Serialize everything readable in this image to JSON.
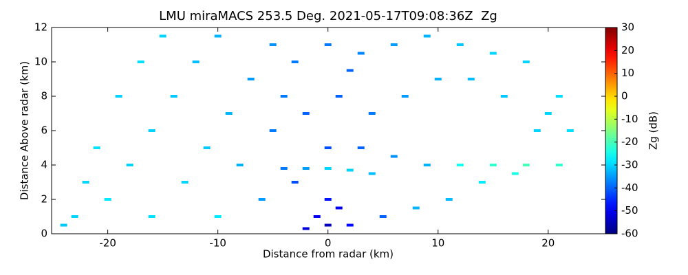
{
  "chart_data": {
    "type": "scatter",
    "title": "LMU miraMACS 253.5 Deg. 2021-05-17T09:08:36Z  Zg",
    "xlabel": "Distance from radar (km)",
    "ylabel": "Distance Above radar  (km)",
    "xlim": [
      -25.1,
      25.2
    ],
    "xticks": [
      -20,
      -10,
      0,
      10,
      20
    ],
    "ylim": [
      0,
      12
    ],
    "yticks": [
      0,
      2,
      4,
      6,
      8,
      10,
      12
    ],
    "colormap": "jet",
    "colorbar": {
      "label": "Zg (dB)",
      "lim": [
        -60,
        30
      ],
      "ticks": [
        -60,
        -50,
        -40,
        -30,
        -20,
        -10,
        0,
        10,
        20,
        30
      ]
    },
    "x": [
      -23,
      -22,
      -21,
      -19,
      -17,
      -15,
      -20,
      -18,
      -16,
      -14,
      -12,
      -10,
      -13,
      -11,
      -9,
      -7,
      -5,
      -3,
      0,
      3,
      6,
      9,
      12,
      15,
      18,
      21,
      22,
      19,
      16,
      13,
      10,
      7,
      4,
      1,
      -2,
      -5,
      -8,
      -6,
      -3,
      0,
      3,
      6,
      9,
      12,
      15,
      18,
      21,
      17,
      14,
      11,
      8,
      5,
      2,
      0,
      -1,
      0,
      -2,
      1,
      -4,
      -2,
      0,
      2,
      4,
      -10,
      -16,
      -24,
      20,
      -4,
      2
    ],
    "y": [
      1,
      3,
      5,
      8,
      10,
      11.5,
      2,
      4,
      6,
      8,
      10,
      11.5,
      3,
      5,
      7,
      9,
      11,
      10,
      11,
      10.5,
      11,
      11.5,
      11,
      10.5,
      10,
      8,
      6,
      6,
      8,
      9,
      9,
      8,
      7,
      8,
      7,
      6,
      4,
      2,
      3,
      5,
      5,
      4.5,
      4,
      4,
      4,
      4,
      4,
      3.5,
      3,
      2,
      1.5,
      1,
      0.5,
      0.5,
      1,
      2,
      0.3,
      1.5,
      3.8,
      3.8,
      3.8,
      3.7,
      3.5,
      1,
      1,
      0.5,
      7,
      8,
      9.5
    ],
    "values": [
      -30,
      -30,
      -29,
      -30,
      -29,
      -30,
      -28,
      -30,
      -30,
      -31,
      -32,
      -33,
      -30,
      -31,
      -33,
      -35,
      -36,
      -38,
      -38,
      -37,
      -35,
      -33,
      -31,
      -30,
      -30,
      -29,
      -29,
      -30,
      -31,
      -32,
      -33,
      -35,
      -38,
      -40,
      -40,
      -38,
      -33,
      -35,
      -42,
      -42,
      -40,
      -36,
      -33,
      -25,
      -22,
      -20,
      -22,
      -24,
      -28,
      -32,
      -33,
      -40,
      -48,
      -55,
      -50,
      -47,
      -52,
      -50,
      -38,
      -35,
      -30,
      -30,
      -32,
      -28,
      -29,
      -31,
      -30,
      -38,
      -40
    ]
  }
}
